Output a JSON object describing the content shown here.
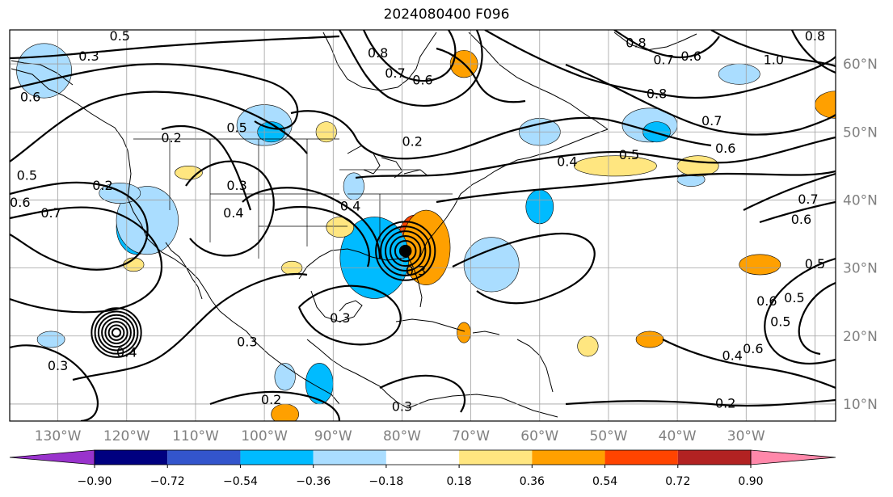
{
  "title": "2024080400 F096",
  "colors": {
    "contour": "#000000",
    "grid": "#a0a0a0",
    "coast": "#000000"
  },
  "map": {
    "lon_range": [
      -137,
      -17
    ],
    "lat_range": [
      7.5,
      65
    ],
    "lon_ticks": [
      {
        "lon": -130,
        "label": "130°W"
      },
      {
        "lon": -120,
        "label": "120°W"
      },
      {
        "lon": -110,
        "label": "110°W"
      },
      {
        "lon": -100,
        "label": "100°W"
      },
      {
        "lon": -90,
        "label": "90°W"
      },
      {
        "lon": -80,
        "label": "80°W"
      },
      {
        "lon": -70,
        "label": "70°W"
      },
      {
        "lon": -60,
        "label": "60°W"
      },
      {
        "lon": -50,
        "label": "50°W"
      },
      {
        "lon": -40,
        "label": "40°W"
      },
      {
        "lon": -30,
        "label": "30°W"
      }
    ],
    "lat_ticks": [
      {
        "lat": 60,
        "label": "60°N"
      },
      {
        "lat": 50,
        "label": "50°N"
      },
      {
        "lat": 40,
        "label": "40°N"
      },
      {
        "lat": 30,
        "label": "30°N"
      },
      {
        "lat": 20,
        "label": "20°N"
      },
      {
        "lat": 10,
        "label": "10°N"
      }
    ],
    "grid_lons": [
      -130,
      -120,
      -110,
      -100,
      -90,
      -80,
      -70,
      -60,
      -50,
      -40,
      -30,
      -20
    ],
    "grid_lats": [
      10,
      20,
      30,
      40,
      50,
      60
    ]
  },
  "colorbar": {
    "labels": [
      "−0.90",
      "−0.72",
      "−0.54",
      "−0.36",
      "−0.18",
      "0.18",
      "0.36",
      "0.54",
      "0.72",
      "0.90"
    ],
    "under_color": "#9933cc",
    "over_color": "#ff88aa",
    "bins": [
      "#000080",
      "#3355cc",
      "#00bbff",
      "#aaddff",
      "#ffffff",
      "#ffe680",
      "#ffa000",
      "#ff4400",
      "#b22222"
    ]
  },
  "shaded_areas": [
    {
      "lon": -78,
      "lat": 34,
      "rlon": 2.6,
      "rlat": 3.8,
      "color": "#ff4400"
    },
    {
      "lon": -76.5,
      "lat": 33,
      "rlon": 3.5,
      "rlat": 5.5,
      "color": "#ffa000"
    },
    {
      "lon": -84,
      "lat": 32,
      "rlon": 2.6,
      "rlat": 3.5,
      "color": "#000080"
    },
    {
      "lon": -84.5,
      "lat": 31.5,
      "rlon": 4,
      "rlat": 5,
      "color": "#3355cc"
    },
    {
      "lon": -84,
      "lat": 31.5,
      "rlon": 5,
      "rlat": 6,
      "color": "#00bbff"
    },
    {
      "lon": -118.5,
      "lat": 36,
      "rlon": 3,
      "rlat": 4,
      "color": "#00bbff"
    },
    {
      "lon": -117,
      "lat": 37,
      "rlon": 4.5,
      "rlat": 5,
      "color": "#aaddff"
    },
    {
      "lon": -67,
      "lat": 31,
      "rlon": 2.5,
      "rlat": 3,
      "color": "#00bbff"
    },
    {
      "lon": -67,
      "lat": 30.5,
      "rlon": 4,
      "rlat": 4,
      "color": "#aaddff"
    },
    {
      "lon": -60,
      "lat": 39,
      "rlon": 2,
      "rlat": 2.5,
      "color": "#00bbff"
    },
    {
      "lon": -100,
      "lat": 51,
      "rlon": 4,
      "rlat": 3,
      "color": "#aaddff"
    },
    {
      "lon": -99,
      "lat": 50,
      "rlon": 2,
      "rlat": 1.5,
      "color": "#00bbff"
    },
    {
      "lon": -132,
      "lat": 59,
      "rlon": 4,
      "rlat": 4,
      "color": "#aaddff"
    },
    {
      "lon": -44,
      "lat": 51,
      "rlon": 4,
      "rlat": 2.5,
      "color": "#aaddff"
    },
    {
      "lon": -43,
      "lat": 50,
      "rlon": 2,
      "rlat": 1.5,
      "color": "#00bbff"
    },
    {
      "lon": -31,
      "lat": 58.5,
      "rlon": 3,
      "rlat": 1.5,
      "color": "#aaddff"
    },
    {
      "lon": -92,
      "lat": 13,
      "rlon": 2,
      "rlat": 3,
      "color": "#00bbff"
    },
    {
      "lon": -97,
      "lat": 14,
      "rlon": 1.5,
      "rlat": 2,
      "color": "#aaddff"
    },
    {
      "lon": -87,
      "lat": 42,
      "rlon": 1.5,
      "rlat": 2,
      "color": "#aaddff"
    },
    {
      "lon": -121,
      "lat": 41,
      "rlon": 3,
      "rlat": 1.5,
      "color": "#aaddff"
    },
    {
      "lon": -131,
      "lat": 19.5,
      "rlon": 2,
      "rlat": 1.2,
      "color": "#aaddff"
    },
    {
      "lon": -60,
      "lat": 50,
      "rlon": 3,
      "rlat": 2,
      "color": "#aaddff"
    },
    {
      "lon": -38,
      "lat": 43,
      "rlon": 2,
      "rlat": 1,
      "color": "#aaddff"
    },
    {
      "lon": -17,
      "lat": 54,
      "rlon": 3,
      "rlat": 2,
      "color": "#ffa000"
    },
    {
      "lon": -49,
      "lat": 45,
      "rlon": 6,
      "rlat": 1.5,
      "color": "#ffe680"
    },
    {
      "lon": -28,
      "lat": 30.5,
      "rlon": 3,
      "rlat": 1.5,
      "color": "#ffa000"
    },
    {
      "lon": -71,
      "lat": 60,
      "rlon": 2,
      "rlat": 2,
      "color": "#ffa000"
    },
    {
      "lon": -44,
      "lat": 19.5,
      "rlon": 2,
      "rlat": 1.2,
      "color": "#ffa000"
    },
    {
      "lon": -71,
      "lat": 20.5,
      "rlon": 1,
      "rlat": 1.5,
      "color": "#ffa000"
    },
    {
      "lon": -97,
      "lat": 8.5,
      "rlon": 2,
      "rlat": 1.5,
      "color": "#ffa000"
    },
    {
      "lon": -89,
      "lat": 36,
      "rlon": 2,
      "rlat": 1.5,
      "color": "#ffe680"
    },
    {
      "lon": -111,
      "lat": 44,
      "rlon": 2,
      "rlat": 1,
      "color": "#ffe680"
    },
    {
      "lon": -37,
      "lat": 45,
      "rlon": 3,
      "rlat": 1.5,
      "color": "#ffe680"
    },
    {
      "lon": -119,
      "lat": 30.5,
      "rlon": 1.5,
      "rlat": 1,
      "color": "#ffe680"
    },
    {
      "lon": -91,
      "lat": 50,
      "rlon": 1.5,
      "rlat": 1.5,
      "color": "#ffe680"
    },
    {
      "lon": -53,
      "lat": 18.5,
      "rlon": 1.5,
      "rlat": 1.5,
      "color": "#ffe680"
    },
    {
      "lon": -96,
      "lat": 30,
      "rlon": 1.5,
      "rlat": 1,
      "color": "#ffe680"
    }
  ],
  "cyclones": [
    {
      "lon": -79.5,
      "lat": 32.5,
      "radii_deg": [
        0.8,
        1.5,
        2.2,
        2.9,
        3.6,
        4.3
      ]
    },
    {
      "lon": -121.5,
      "lat": 20.5,
      "radii_deg": [
        0.6,
        1.1,
        1.6,
        2.1,
        2.6,
        3.1,
        3.6
      ]
    }
  ],
  "contour_labels": [
    {
      "lon": -121,
      "lat": 64,
      "text": "0.5"
    },
    {
      "lon": -125.5,
      "lat": 61,
      "text": "0.3"
    },
    {
      "lon": -83.5,
      "lat": 61.5,
      "text": "0.8"
    },
    {
      "lon": -81,
      "lat": 58.5,
      "text": "0.7"
    },
    {
      "lon": -77,
      "lat": 57.5,
      "text": "0.6"
    },
    {
      "lon": -46,
      "lat": 63,
      "text": "0.8"
    },
    {
      "lon": -42,
      "lat": 60.5,
      "text": "0.7"
    },
    {
      "lon": -38,
      "lat": 61,
      "text": "0.6"
    },
    {
      "lon": -26,
      "lat": 60.5,
      "text": "1.0"
    },
    {
      "lon": -20,
      "lat": 64,
      "text": "0.8"
    },
    {
      "lon": -43,
      "lat": 55.5,
      "text": "0.8"
    },
    {
      "lon": -35,
      "lat": 51.5,
      "text": "0.7"
    },
    {
      "lon": -33,
      "lat": 47.5,
      "text": "0.6"
    },
    {
      "lon": -47,
      "lat": 46.5,
      "text": "0.5"
    },
    {
      "lon": -56,
      "lat": 45.5,
      "text": "0.4"
    },
    {
      "lon": -78.5,
      "lat": 48.5,
      "text": "0.2"
    },
    {
      "lon": -104,
      "lat": 50.5,
      "text": "0.5"
    },
    {
      "lon": -113.5,
      "lat": 49,
      "text": "0.2"
    },
    {
      "lon": -104,
      "lat": 42,
      "text": "0.3"
    },
    {
      "lon": -104.5,
      "lat": 38,
      "text": "0.4"
    },
    {
      "lon": -123.5,
      "lat": 42,
      "text": "0.2"
    },
    {
      "lon": -131,
      "lat": 38,
      "text": "0.7"
    },
    {
      "lon": -134.5,
      "lat": 43.5,
      "text": "0.5"
    },
    {
      "lon": -135.5,
      "lat": 39.5,
      "text": "0.6"
    },
    {
      "lon": -134,
      "lat": 55,
      "text": "0.6"
    },
    {
      "lon": -87.5,
      "lat": 39,
      "text": "0.4"
    },
    {
      "lon": -78,
      "lat": 29.5,
      "text": "0.3"
    },
    {
      "lon": -21,
      "lat": 40,
      "text": "0.7"
    },
    {
      "lon": -22,
      "lat": 37,
      "text": "0.6"
    },
    {
      "lon": -20,
      "lat": 30.5,
      "text": "0.5"
    },
    {
      "lon": -23,
      "lat": 25.5,
      "text": "0.5"
    },
    {
      "lon": -27,
      "lat": 25,
      "text": "0.6"
    },
    {
      "lon": -25,
      "lat": 22,
      "text": "0.5"
    },
    {
      "lon": -29,
      "lat": 18,
      "text": "0.6"
    },
    {
      "lon": -32,
      "lat": 17,
      "text": "0.4"
    },
    {
      "lon": -33,
      "lat": 10,
      "text": "0.2"
    },
    {
      "lon": -99,
      "lat": 10.5,
      "text": "0.2"
    },
    {
      "lon": -80,
      "lat": 9.5,
      "text": "0.3"
    },
    {
      "lon": -102.5,
      "lat": 19,
      "text": "0.3"
    },
    {
      "lon": -89,
      "lat": 22.5,
      "text": "0.3"
    },
    {
      "lon": -130,
      "lat": 15.5,
      "text": "0.3"
    },
    {
      "lon": -120,
      "lat": 17.5,
      "text": "0.4"
    }
  ]
}
